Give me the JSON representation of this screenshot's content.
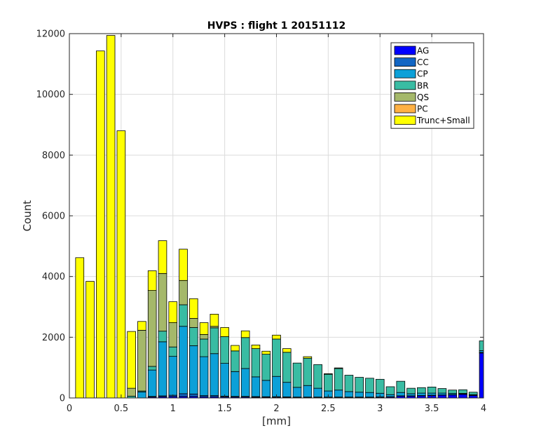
{
  "chart_data": {
    "type": "bar",
    "stacked": true,
    "title": "HVPS : flight 1 20151112",
    "xlabel": "[mm]",
    "ylabel": "Count",
    "xlim": [
      0,
      4
    ],
    "ylim": [
      0,
      12000
    ],
    "grid": true,
    "legend_position": "top-right",
    "xticks": [
      "0",
      "0.5",
      "1",
      "1.5",
      "2",
      "2.5",
      "3",
      "3.5",
      "4"
    ],
    "yticks": [
      "0",
      "2000",
      "4000",
      "6000",
      "8000",
      "10000",
      "12000"
    ],
    "x": [
      0.1,
      0.2,
      0.3,
      0.4,
      0.5,
      0.6,
      0.7,
      0.8,
      0.9,
      1.0,
      1.1,
      1.2,
      1.3,
      1.4,
      1.5,
      1.6,
      1.7,
      1.8,
      1.9,
      2.0,
      2.1,
      2.2,
      2.3,
      2.4,
      2.5,
      2.6,
      2.7,
      2.8,
      2.9,
      3.0,
      3.1,
      3.2,
      3.3,
      3.4,
      3.5,
      3.6,
      3.7,
      3.8,
      3.9,
      4.0
    ],
    "series": [
      {
        "name": "AG",
        "color": "#0000ff",
        "values": [
          0,
          0,
          0,
          0,
          0,
          0,
          0,
          30,
          40,
          50,
          50,
          50,
          40,
          40,
          30,
          30,
          30,
          25,
          25,
          25,
          20,
          20,
          20,
          20,
          20,
          20,
          20,
          20,
          20,
          25,
          30,
          60,
          60,
          70,
          80,
          90,
          100,
          120,
          80,
          1480
        ]
      },
      {
        "name": "CC",
        "color": "#1266c4",
        "values": [
          0,
          0,
          0,
          0,
          0,
          0,
          0,
          20,
          30,
          40,
          90,
          80,
          40,
          40,
          30,
          20,
          20,
          20,
          15,
          15,
          15,
          10,
          10,
          10,
          10,
          10,
          10,
          10,
          10,
          10,
          10,
          10,
          10,
          10,
          10,
          10,
          10,
          10,
          10,
          20
        ]
      },
      {
        "name": "CP",
        "color": "#0ca0d8",
        "values": [
          0,
          0,
          0,
          0,
          0,
          0,
          200,
          870,
          1780,
          1280,
          2220,
          1590,
          1280,
          1380,
          1080,
          820,
          920,
          650,
          540,
          670,
          480,
          320,
          380,
          290,
          200,
          230,
          180,
          160,
          150,
          120,
          70,
          110,
          70,
          80,
          70,
          60,
          40,
          20,
          20,
          60
        ]
      },
      {
        "name": "BR",
        "color": "#39bca3",
        "values": [
          0,
          0,
          0,
          0,
          0,
          60,
          30,
          120,
          350,
          310,
          710,
          600,
          580,
          850,
          880,
          680,
          1020,
          930,
          860,
          1230,
          990,
          800,
          900,
          780,
          550,
          710,
          540,
          490,
          470,
          460,
          260,
          370,
          180,
          180,
          200,
          150,
          110,
          120,
          80,
          320
        ]
      },
      {
        "name": "QS",
        "color": "#a5b86a",
        "values": [
          0,
          0,
          0,
          0,
          0,
          260,
          2000,
          2500,
          1900,
          800,
          800,
          300,
          150,
          50,
          0,
          0,
          0,
          0,
          0,
          0,
          0,
          0,
          0,
          0,
          0,
          0,
          0,
          0,
          0,
          0,
          0,
          0,
          0,
          0,
          0,
          0,
          0,
          0,
          0,
          0
        ]
      },
      {
        "name": "PC",
        "color": "#ffb144",
        "values": [
          0,
          0,
          0,
          0,
          0,
          0,
          0,
          0,
          0,
          0,
          0,
          0,
          0,
          0,
          0,
          0,
          0,
          0,
          0,
          0,
          0,
          0,
          0,
          0,
          0,
          0,
          0,
          0,
          0,
          0,
          0,
          0,
          0,
          0,
          0,
          0,
          0,
          0,
          0,
          0
        ]
      },
      {
        "name": "Trunc+Small",
        "color": "#ffff00",
        "values": [
          4620,
          3840,
          11430,
          11940,
          8800,
          1870,
          290,
          650,
          1080,
          690,
          1030,
          650,
          390,
          400,
          300,
          180,
          220,
          120,
          100,
          130,
          120,
          0,
          50,
          0,
          20,
          20,
          0,
          0,
          0,
          0,
          0,
          0,
          0,
          0,
          0,
          0,
          0,
          0,
          0,
          0
        ]
      }
    ]
  }
}
